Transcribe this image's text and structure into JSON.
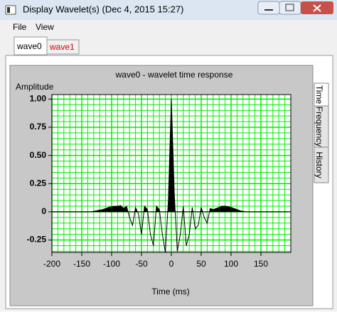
{
  "window": {
    "title": "Display Wavelet(s)  (Dec 4, 2015  15:27)"
  },
  "menu": [
    "File",
    "View"
  ],
  "tabs": [
    "wave0",
    "wave1"
  ],
  "side_tabs": [
    "Time",
    "Frequency",
    "History"
  ],
  "chart_data": {
    "type": "line",
    "title": "wave0 - wavelet time response",
    "y_label": "Amplitude",
    "x_label": "Time (ms)",
    "x": [
      -200,
      -195,
      -190,
      -185,
      -180,
      -175,
      -170,
      -165,
      -160,
      -155,
      -150,
      -145,
      -140,
      -135,
      -130,
      -125,
      -120,
      -115,
      -110,
      -105,
      -100,
      -95,
      -90,
      -85,
      -80,
      -75,
      -70,
      -65,
      -60,
      -55,
      -50,
      -45,
      -40,
      -35,
      -30,
      -25,
      -20,
      -15,
      -10,
      -5,
      0,
      5,
      10,
      15,
      20,
      25,
      30,
      35,
      40,
      45,
      50,
      55,
      60,
      65,
      70,
      75,
      80,
      85,
      90,
      95,
      100,
      105,
      110,
      115,
      120,
      125,
      130,
      135,
      140,
      145,
      150,
      155,
      160,
      165,
      170,
      175,
      180,
      185,
      190,
      195
    ],
    "series": [
      {
        "name": "wave0",
        "color": "#000000",
        "values": [
          0,
          0,
          0,
          0,
          0,
          0,
          0,
          0,
          0,
          0,
          0,
          0,
          0,
          0,
          0.005,
          0.01,
          0.015,
          0.02,
          0.03,
          0.04,
          0.045,
          0.05,
          0.05,
          0.055,
          0.03,
          0.05,
          -0.05,
          -0.12,
          0.04,
          -0.02,
          -0.2,
          0.05,
          0.02,
          -0.2,
          -0.3,
          0.05,
          0.02,
          -0.2,
          -0.36,
          0.1,
          1.0,
          0.15,
          -0.35,
          -0.2,
          0.05,
          -0.3,
          -0.2,
          0.04,
          -0.15,
          -0.12,
          0.04,
          -0.05,
          -0.1,
          0.03,
          0.02,
          0.03,
          0.04,
          0.05,
          0.05,
          0.045,
          0.04,
          0.03,
          0.02,
          0.01,
          0.005,
          0,
          0,
          0,
          0,
          0,
          0,
          0,
          0,
          0,
          0,
          0,
          0,
          0,
          0,
          0
        ]
      }
    ],
    "xlim": [
      -200,
      200
    ],
    "ylim": [
      -0.36,
      1.04
    ],
    "xticks": [
      -200,
      -150,
      -100,
      -50,
      0,
      50,
      100,
      150
    ],
    "yticks": [
      {
        "value": 1,
        "label": "1.00"
      },
      0.75,
      {
        "value": 0.5,
        "label": "0.50"
      },
      0.25,
      0,
      -0.25
    ],
    "grid": true,
    "grid_color": "#00ee00",
    "fill_positive": true
  }
}
